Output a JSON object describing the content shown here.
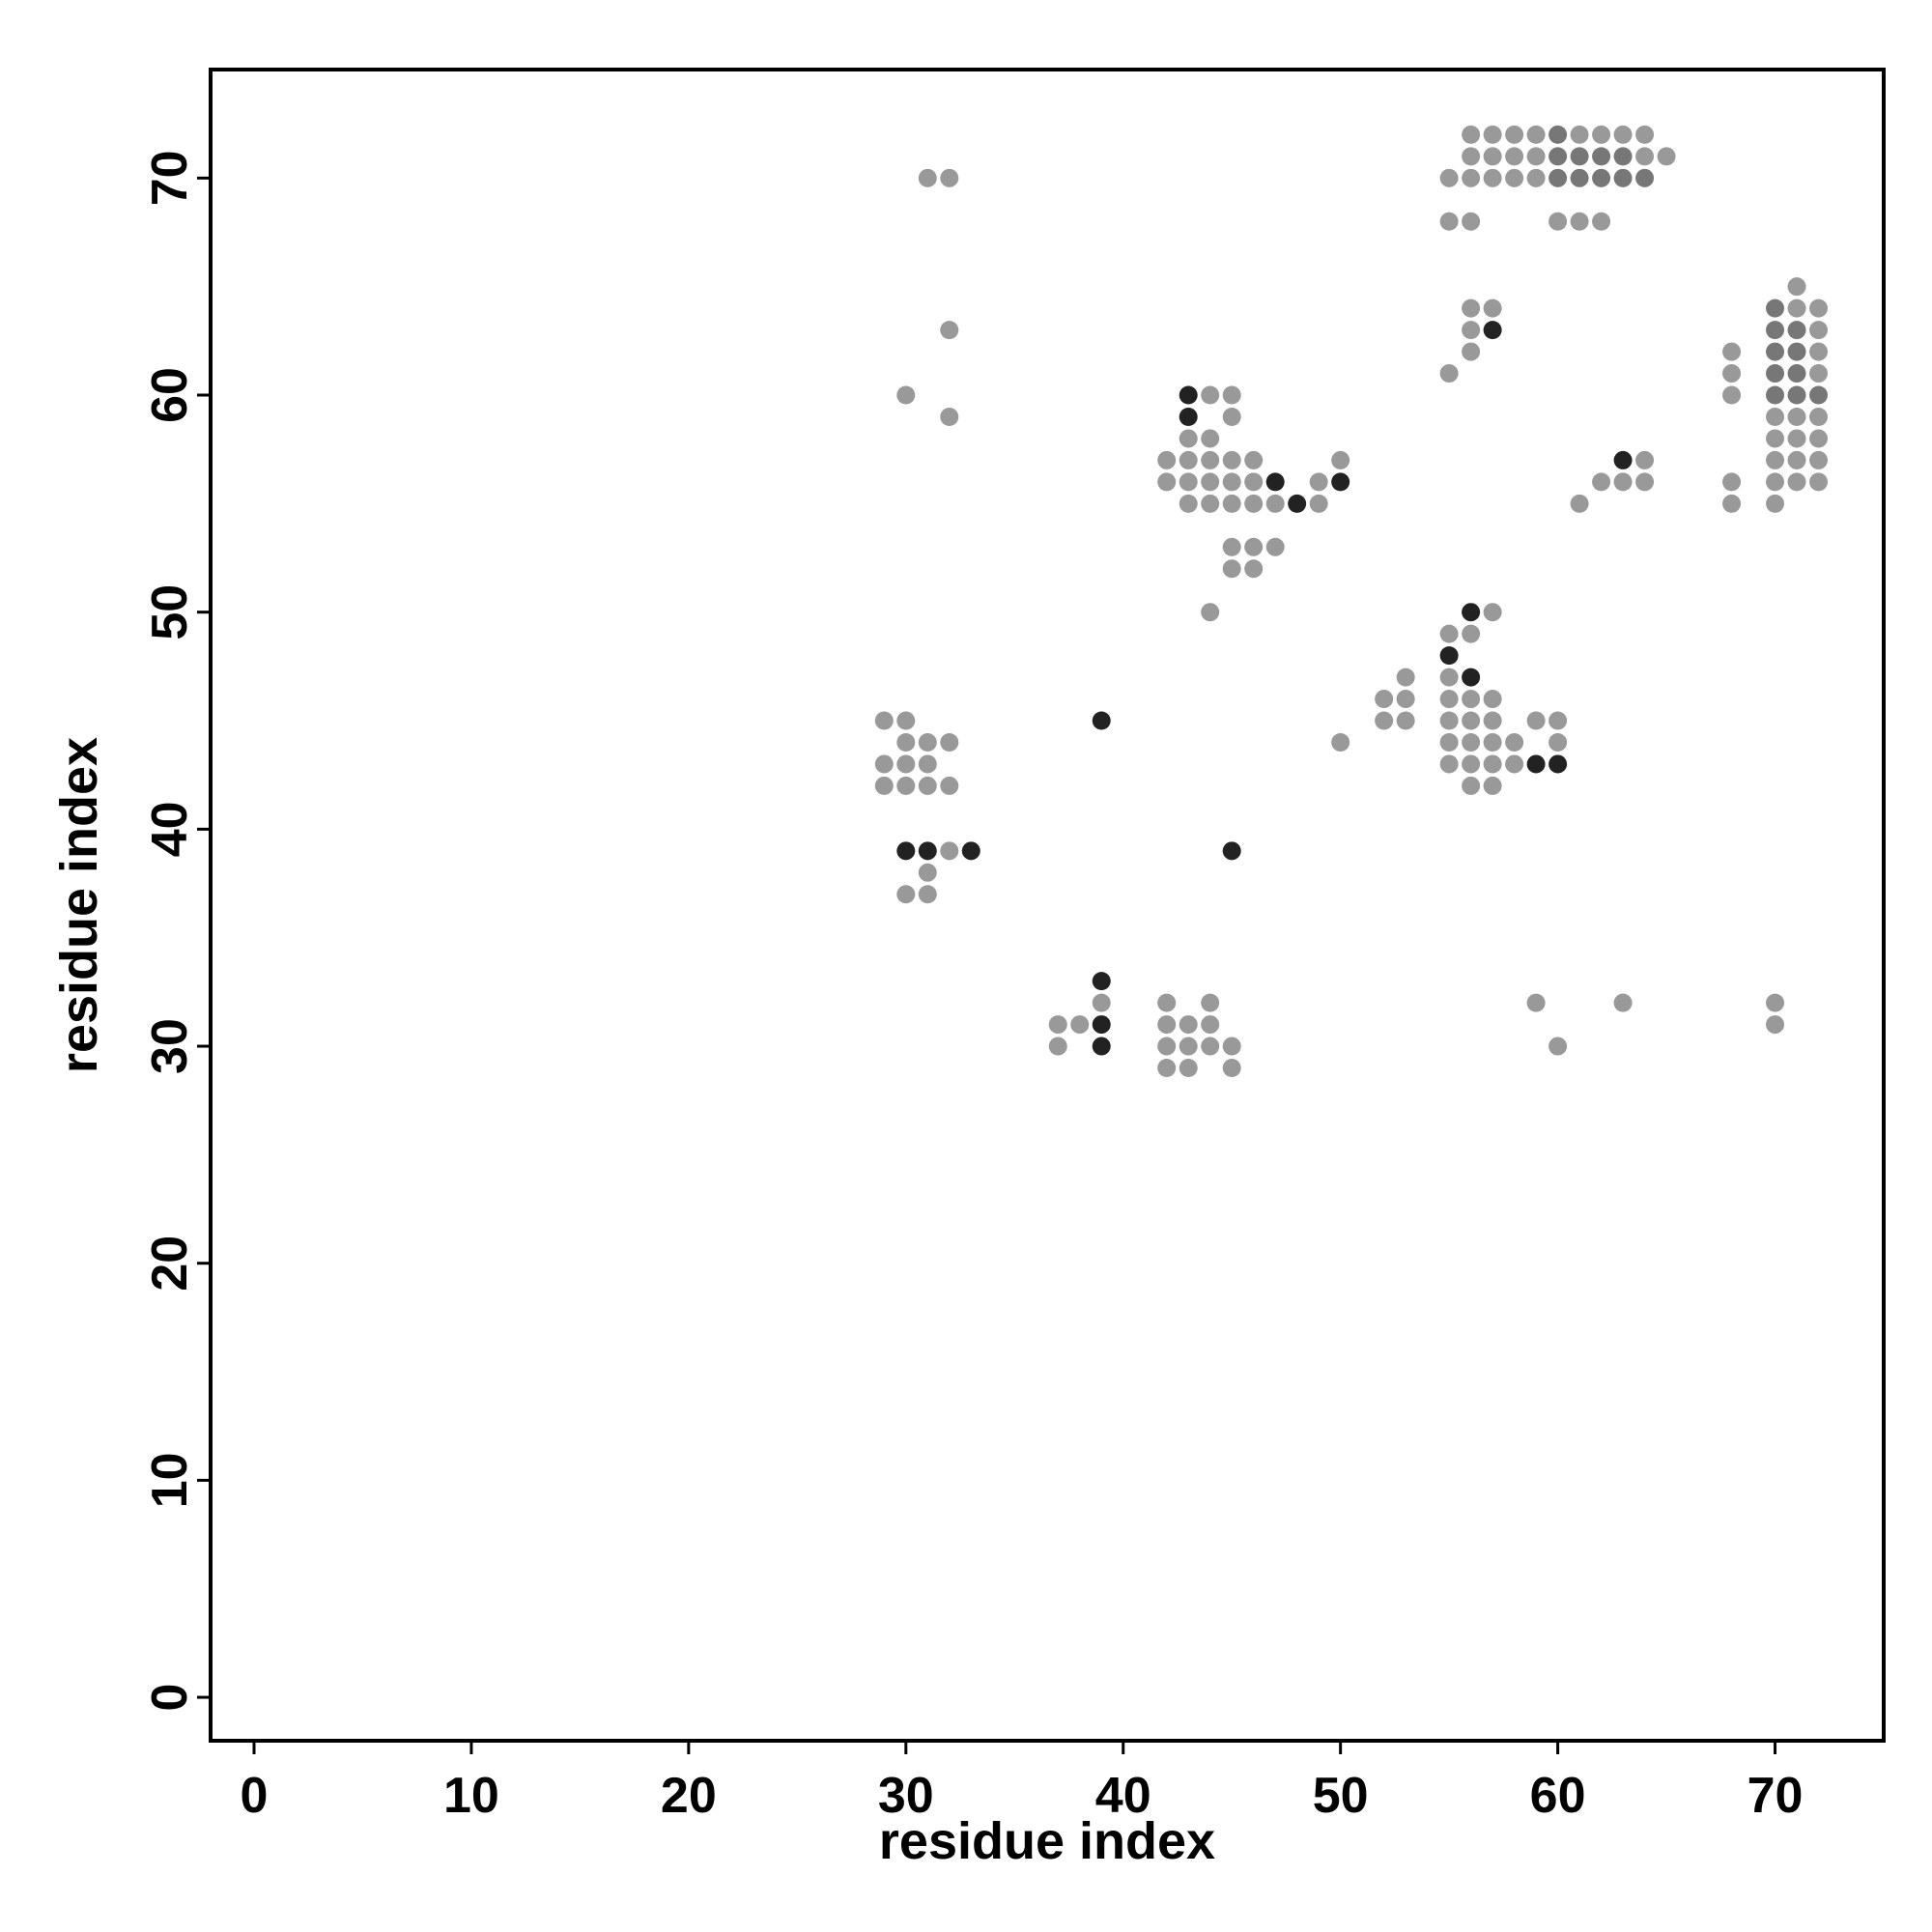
{
  "chart_data": {
    "type": "scatter",
    "title": "",
    "xlabel": "residue index",
    "ylabel": "residue index",
    "xlim": [
      -2,
      75
    ],
    "ylim": [
      -2,
      75
    ],
    "xticks": [
      0,
      10,
      20,
      30,
      40,
      50,
      60,
      70
    ],
    "yticks": [
      0,
      10,
      20,
      30,
      40,
      50,
      60,
      70
    ],
    "grid": false,
    "legend": "none",
    "colors": {
      "light": "#999999",
      "medium": "#777777",
      "dark": "#222222"
    },
    "points": [
      [
        31,
        70,
        "light"
      ],
      [
        32,
        70,
        "light"
      ],
      [
        32,
        63,
        "light"
      ],
      [
        30,
        60,
        "light"
      ],
      [
        32,
        59,
        "light"
      ],
      [
        56,
        72,
        "light"
      ],
      [
        57,
        72,
        "light"
      ],
      [
        58,
        72,
        "light"
      ],
      [
        59,
        72,
        "light"
      ],
      [
        60,
        72,
        "medium"
      ],
      [
        61,
        72,
        "light"
      ],
      [
        62,
        72,
        "light"
      ],
      [
        63,
        72,
        "light"
      ],
      [
        64,
        72,
        "light"
      ],
      [
        56,
        71,
        "light"
      ],
      [
        57,
        71,
        "light"
      ],
      [
        58,
        71,
        "light"
      ],
      [
        59,
        71,
        "light"
      ],
      [
        60,
        71,
        "medium"
      ],
      [
        61,
        71,
        "medium"
      ],
      [
        62,
        71,
        "medium"
      ],
      [
        63,
        71,
        "medium"
      ],
      [
        64,
        71,
        "light"
      ],
      [
        65,
        71,
        "light"
      ],
      [
        55,
        70,
        "light"
      ],
      [
        56,
        70,
        "light"
      ],
      [
        57,
        70,
        "light"
      ],
      [
        58,
        70,
        "light"
      ],
      [
        59,
        70,
        "light"
      ],
      [
        60,
        70,
        "medium"
      ],
      [
        61,
        70,
        "medium"
      ],
      [
        62,
        70,
        "medium"
      ],
      [
        63,
        70,
        "medium"
      ],
      [
        64,
        70,
        "medium"
      ],
      [
        55,
        68,
        "light"
      ],
      [
        56,
        68,
        "light"
      ],
      [
        60,
        68,
        "light"
      ],
      [
        61,
        68,
        "light"
      ],
      [
        62,
        68,
        "light"
      ],
      [
        56,
        64,
        "light"
      ],
      [
        57,
        64,
        "light"
      ],
      [
        56,
        63,
        "light"
      ],
      [
        57,
        63,
        "dark"
      ],
      [
        56,
        62,
        "light"
      ],
      [
        55,
        61,
        "light"
      ],
      [
        71,
        65,
        "light"
      ],
      [
        70,
        64,
        "medium"
      ],
      [
        71,
        64,
        "light"
      ],
      [
        72,
        64,
        "light"
      ],
      [
        70,
        63,
        "medium"
      ],
      [
        71,
        63,
        "medium"
      ],
      [
        72,
        63,
        "light"
      ],
      [
        68,
        62,
        "light"
      ],
      [
        70,
        62,
        "medium"
      ],
      [
        71,
        62,
        "medium"
      ],
      [
        72,
        62,
        "light"
      ],
      [
        68,
        61,
        "light"
      ],
      [
        70,
        61,
        "medium"
      ],
      [
        71,
        61,
        "medium"
      ],
      [
        72,
        61,
        "light"
      ],
      [
        68,
        60,
        "light"
      ],
      [
        70,
        60,
        "medium"
      ],
      [
        71,
        60,
        "medium"
      ],
      [
        72,
        60,
        "medium"
      ],
      [
        70,
        59,
        "light"
      ],
      [
        71,
        59,
        "light"
      ],
      [
        72,
        59,
        "light"
      ],
      [
        70,
        58,
        "light"
      ],
      [
        71,
        58,
        "light"
      ],
      [
        72,
        58,
        "light"
      ],
      [
        70,
        57,
        "light"
      ],
      [
        71,
        57,
        "light"
      ],
      [
        72,
        57,
        "light"
      ],
      [
        68,
        56,
        "light"
      ],
      [
        70,
        56,
        "light"
      ],
      [
        71,
        56,
        "light"
      ],
      [
        72,
        56,
        "light"
      ],
      [
        68,
        55,
        "light"
      ],
      [
        70,
        55,
        "light"
      ],
      [
        43,
        60,
        "dark"
      ],
      [
        44,
        60,
        "light"
      ],
      [
        45,
        60,
        "light"
      ],
      [
        43,
        59,
        "dark"
      ],
      [
        45,
        59,
        "light"
      ],
      [
        43,
        58,
        "light"
      ],
      [
        44,
        58,
        "light"
      ],
      [
        42,
        57,
        "light"
      ],
      [
        43,
        57,
        "light"
      ],
      [
        44,
        57,
        "light"
      ],
      [
        45,
        57,
        "light"
      ],
      [
        46,
        57,
        "light"
      ],
      [
        50,
        57,
        "light"
      ],
      [
        42,
        56,
        "light"
      ],
      [
        43,
        56,
        "light"
      ],
      [
        44,
        56,
        "light"
      ],
      [
        45,
        56,
        "light"
      ],
      [
        46,
        56,
        "light"
      ],
      [
        47,
        56,
        "dark"
      ],
      [
        49,
        56,
        "light"
      ],
      [
        50,
        56,
        "dark"
      ],
      [
        43,
        55,
        "light"
      ],
      [
        44,
        55,
        "light"
      ],
      [
        45,
        55,
        "light"
      ],
      [
        46,
        55,
        "light"
      ],
      [
        47,
        55,
        "light"
      ],
      [
        48,
        55,
        "dark"
      ],
      [
        49,
        55,
        "light"
      ],
      [
        45,
        53,
        "light"
      ],
      [
        46,
        53,
        "light"
      ],
      [
        47,
        53,
        "light"
      ],
      [
        45,
        52,
        "light"
      ],
      [
        46,
        52,
        "light"
      ],
      [
        44,
        50,
        "light"
      ],
      [
        63,
        57,
        "dark"
      ],
      [
        64,
        57,
        "light"
      ],
      [
        62,
        56,
        "light"
      ],
      [
        63,
        56,
        "light"
      ],
      [
        64,
        56,
        "light"
      ],
      [
        61,
        55,
        "light"
      ],
      [
        56,
        50,
        "dark"
      ],
      [
        57,
        50,
        "light"
      ],
      [
        55,
        49,
        "light"
      ],
      [
        56,
        49,
        "light"
      ],
      [
        55,
        48,
        "dark"
      ],
      [
        53,
        47,
        "light"
      ],
      [
        55,
        47,
        "light"
      ],
      [
        56,
        47,
        "dark"
      ],
      [
        52,
        46,
        "light"
      ],
      [
        53,
        46,
        "light"
      ],
      [
        55,
        46,
        "light"
      ],
      [
        56,
        46,
        "light"
      ],
      [
        57,
        46,
        "light"
      ],
      [
        52,
        45,
        "light"
      ],
      [
        53,
        45,
        "light"
      ],
      [
        55,
        45,
        "light"
      ],
      [
        56,
        45,
        "light"
      ],
      [
        57,
        45,
        "light"
      ],
      [
        59,
        45,
        "light"
      ],
      [
        60,
        45,
        "light"
      ],
      [
        50,
        44,
        "light"
      ],
      [
        55,
        44,
        "light"
      ],
      [
        56,
        44,
        "light"
      ],
      [
        57,
        44,
        "light"
      ],
      [
        58,
        44,
        "light"
      ],
      [
        60,
        44,
        "light"
      ],
      [
        55,
        43,
        "light"
      ],
      [
        56,
        43,
        "light"
      ],
      [
        57,
        43,
        "light"
      ],
      [
        58,
        43,
        "light"
      ],
      [
        59,
        43,
        "dark"
      ],
      [
        60,
        43,
        "dark"
      ],
      [
        56,
        42,
        "light"
      ],
      [
        57,
        42,
        "light"
      ],
      [
        29,
        45,
        "light"
      ],
      [
        30,
        45,
        "light"
      ],
      [
        39,
        45,
        "dark"
      ],
      [
        30,
        44,
        "light"
      ],
      [
        31,
        44,
        "light"
      ],
      [
        32,
        44,
        "light"
      ],
      [
        29,
        43,
        "light"
      ],
      [
        30,
        43,
        "light"
      ],
      [
        31,
        43,
        "light"
      ],
      [
        29,
        42,
        "light"
      ],
      [
        30,
        42,
        "light"
      ],
      [
        31,
        42,
        "light"
      ],
      [
        32,
        42,
        "light"
      ],
      [
        30,
        39,
        "dark"
      ],
      [
        31,
        39,
        "dark"
      ],
      [
        32,
        39,
        "light"
      ],
      [
        33,
        39,
        "dark"
      ],
      [
        45,
        39,
        "dark"
      ],
      [
        31,
        38,
        "light"
      ],
      [
        30,
        37,
        "light"
      ],
      [
        31,
        37,
        "light"
      ],
      [
        39,
        33,
        "dark"
      ],
      [
        39,
        32,
        "light"
      ],
      [
        42,
        32,
        "light"
      ],
      [
        44,
        32,
        "light"
      ],
      [
        59,
        32,
        "light"
      ],
      [
        63,
        32,
        "light"
      ],
      [
        70,
        32,
        "light"
      ],
      [
        37,
        31,
        "light"
      ],
      [
        38,
        31,
        "light"
      ],
      [
        39,
        31,
        "dark"
      ],
      [
        42,
        31,
        "light"
      ],
      [
        43,
        31,
        "light"
      ],
      [
        44,
        31,
        "light"
      ],
      [
        70,
        31,
        "light"
      ],
      [
        37,
        30,
        "light"
      ],
      [
        39,
        30,
        "dark"
      ],
      [
        42,
        30,
        "light"
      ],
      [
        43,
        30,
        "light"
      ],
      [
        44,
        30,
        "light"
      ],
      [
        45,
        30,
        "light"
      ],
      [
        60,
        30,
        "light"
      ],
      [
        42,
        29,
        "light"
      ],
      [
        43,
        29,
        "light"
      ],
      [
        45,
        29,
        "light"
      ]
    ]
  }
}
